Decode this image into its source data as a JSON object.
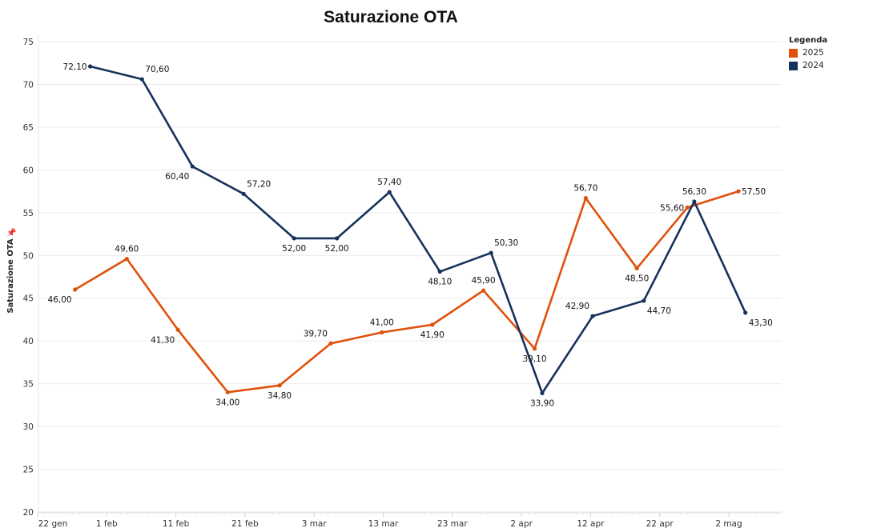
{
  "colors": {
    "series_2025": "#E0500B",
    "series_2024": "#16325C",
    "grid": "#ebebeb",
    "axis": "#e6e6e6"
  },
  "legend": {
    "title": "Legenda",
    "items": [
      {
        "label": "2025",
        "color": "#E0500B"
      },
      {
        "label": "2024",
        "color": "#16325C"
      }
    ]
  },
  "chart_data": {
    "type": "line",
    "title": "Saturazione OTA",
    "xlabel": "",
    "ylabel": "Saturazione OTA",
    "ylabel_icon": "pin-icon",
    "ylim": [
      20,
      75
    ],
    "yticks": [
      "20",
      "25",
      "30",
      "35",
      "40",
      "45",
      "50",
      "55",
      "60",
      "65",
      "70",
      "75"
    ],
    "ytick_values": [
      20,
      25,
      30,
      35,
      40,
      45,
      50,
      55,
      60,
      65,
      70,
      75
    ],
    "xlim_days": [
      0,
      108
    ],
    "xticks": [
      "22 gen",
      "1 feb",
      "11 feb",
      "21 feb",
      "3 mar",
      "13 mar",
      "23 mar",
      "2 apr",
      "12 apr",
      "22 apr",
      "2 mag"
    ],
    "xtick_days": [
      0,
      10,
      20,
      30,
      40,
      50,
      60,
      70,
      80,
      90,
      100
    ],
    "grid": true,
    "legend_position": "top-right",
    "series": [
      {
        "name": "2025",
        "color": "#E0500B",
        "x_days": [
          5.4,
          12.9,
          20.3,
          27.5,
          35.0,
          42.4,
          49.8,
          57.1,
          64.5,
          71.9,
          79.3,
          86.7,
          94.0,
          101.4
        ],
        "values": [
          46.0,
          49.6,
          41.3,
          34.0,
          34.8,
          39.7,
          41.0,
          41.9,
          45.9,
          39.1,
          56.7,
          48.5,
          55.6,
          57.5
        ],
        "labels": [
          "46,00",
          "49,60",
          "41,30",
          "34,00",
          "34,80",
          "39,70",
          "41,00",
          "41,90",
          "45,90",
          "39,10",
          "56,70",
          "48,50",
          "55,60",
          "57,50"
        ],
        "label_pos": [
          "below-left",
          "above",
          "below-left",
          "below",
          "below",
          "above-left",
          "above",
          "below",
          "above",
          "below",
          "above",
          "below",
          "left",
          "right"
        ]
      },
      {
        "name": "2024",
        "color": "#16325C",
        "x_days": [
          7.6,
          15.1,
          22.4,
          29.8,
          37.1,
          43.3,
          50.9,
          58.2,
          65.6,
          73.0,
          80.3,
          87.7,
          95.0,
          102.4
        ],
        "values": [
          72.1,
          70.6,
          60.4,
          57.2,
          52.0,
          52.0,
          57.4,
          48.1,
          50.3,
          33.9,
          42.9,
          44.7,
          56.3,
          43.3
        ],
        "labels": [
          "72,10",
          "70,60",
          "60,40",
          "57,20",
          "52,00",
          "52,00",
          "57,40",
          "48,10",
          "50,30",
          "33,90",
          "42,90",
          "44,70",
          "56,30",
          "43,30"
        ],
        "label_pos": [
          "left",
          "above-right",
          "below-left",
          "above-right",
          "below",
          "below",
          "above",
          "below",
          "above-right",
          "below",
          "above-left",
          "below-right",
          "above",
          "below-right"
        ]
      }
    ]
  }
}
